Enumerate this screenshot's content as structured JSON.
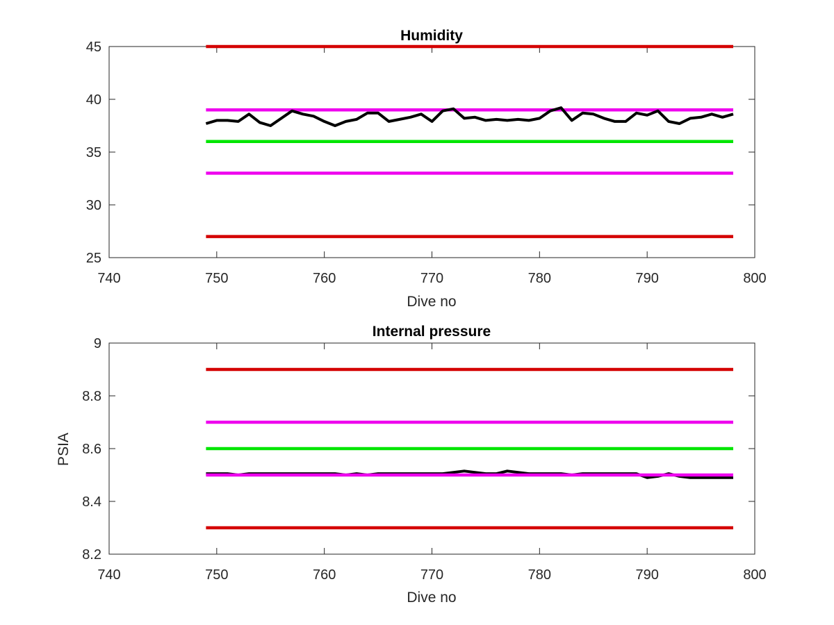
{
  "chart_data": [
    {
      "type": "line",
      "title": "Humidity",
      "xlabel": "Dive no",
      "ylabel": "",
      "xlim": [
        740,
        800
      ],
      "ylim": [
        25,
        45
      ],
      "xticks": [
        "740",
        "750",
        "760",
        "770",
        "780",
        "790",
        "800"
      ],
      "yticks": [
        "25",
        "30",
        "35",
        "40",
        "45"
      ],
      "grid": false,
      "series": [
        {
          "color": "#d40000",
          "x": [
            749,
            798
          ],
          "y": [
            45,
            45
          ]
        },
        {
          "color": "#ee00ee",
          "x": [
            749,
            798
          ],
          "y": [
            39,
            39
          ]
        },
        {
          "color": "#00e600",
          "x": [
            749,
            798
          ],
          "y": [
            36,
            36
          ]
        },
        {
          "color": "#ee00ee",
          "x": [
            749,
            798
          ],
          "y": [
            33,
            33
          ]
        },
        {
          "color": "#d40000",
          "x": [
            749,
            798
          ],
          "y": [
            27,
            27
          ]
        },
        {
          "color": "#000000",
          "x": [
            749,
            750,
            751,
            752,
            753,
            754,
            755,
            756,
            757,
            758,
            759,
            760,
            761,
            762,
            763,
            764,
            765,
            766,
            767,
            768,
            769,
            770,
            771,
            772,
            773,
            774,
            775,
            776,
            777,
            778,
            779,
            780,
            781,
            782,
            783,
            784,
            785,
            786,
            787,
            788,
            789,
            790,
            791,
            792,
            793,
            794,
            795,
            796,
            797,
            798
          ],
          "y": [
            37.7,
            38.0,
            38.0,
            37.9,
            38.6,
            37.8,
            37.5,
            38.2,
            38.9,
            38.6,
            38.4,
            37.9,
            37.5,
            37.9,
            38.1,
            38.7,
            38.7,
            37.9,
            38.1,
            38.3,
            38.6,
            37.9,
            38.9,
            39.1,
            38.2,
            38.3,
            38.0,
            38.1,
            38.0,
            38.1,
            38.0,
            38.2,
            38.9,
            39.2,
            38.0,
            38.7,
            38.6,
            38.2,
            37.9,
            37.9,
            38.7,
            38.5,
            38.9,
            37.9,
            37.7,
            38.2,
            38.3,
            38.6,
            38.3,
            38.6
          ]
        }
      ]
    },
    {
      "type": "line",
      "title": "Internal pressure",
      "xlabel": "Dive no",
      "ylabel": "PSIA",
      "xlim": [
        740,
        800
      ],
      "ylim": [
        8.2,
        9
      ],
      "xticks": [
        "740",
        "750",
        "760",
        "770",
        "780",
        "790",
        "800"
      ],
      "yticks": [
        "8.2",
        "8.4",
        "8.6",
        "8.8",
        "9"
      ],
      "grid": false,
      "series": [
        {
          "color": "#d40000",
          "x": [
            749,
            798
          ],
          "y": [
            8.9,
            8.9
          ]
        },
        {
          "color": "#ee00ee",
          "x": [
            749,
            798
          ],
          "y": [
            8.7,
            8.7
          ]
        },
        {
          "color": "#00e600",
          "x": [
            749,
            798
          ],
          "y": [
            8.6,
            8.6
          ]
        },
        {
          "color": "#000000",
          "x": [
            749,
            750,
            751,
            752,
            753,
            754,
            755,
            756,
            757,
            758,
            759,
            760,
            761,
            762,
            763,
            764,
            765,
            766,
            767,
            768,
            769,
            770,
            771,
            772,
            773,
            774,
            775,
            776,
            777,
            778,
            779,
            780,
            781,
            782,
            783,
            784,
            785,
            786,
            787,
            788,
            789,
            790,
            791,
            792,
            793,
            794,
            795,
            796,
            797,
            798
          ],
          "y": [
            8.505,
            8.505,
            8.505,
            8.5,
            8.505,
            8.505,
            8.505,
            8.505,
            8.505,
            8.505,
            8.505,
            8.505,
            8.505,
            8.5,
            8.505,
            8.5,
            8.505,
            8.505,
            8.505,
            8.505,
            8.505,
            8.505,
            8.505,
            8.51,
            8.515,
            8.51,
            8.505,
            8.505,
            8.515,
            8.51,
            8.505,
            8.505,
            8.505,
            8.505,
            8.5,
            8.505,
            8.505,
            8.505,
            8.505,
            8.505,
            8.505,
            8.49,
            8.495,
            8.505,
            8.495,
            8.49,
            8.49,
            8.49,
            8.49,
            8.49
          ]
        },
        {
          "color": "#ee00ee",
          "x": [
            749,
            798
          ],
          "y": [
            8.5,
            8.5
          ]
        },
        {
          "color": "#d40000",
          "x": [
            749,
            798
          ],
          "y": [
            8.3,
            8.3
          ]
        }
      ]
    }
  ]
}
